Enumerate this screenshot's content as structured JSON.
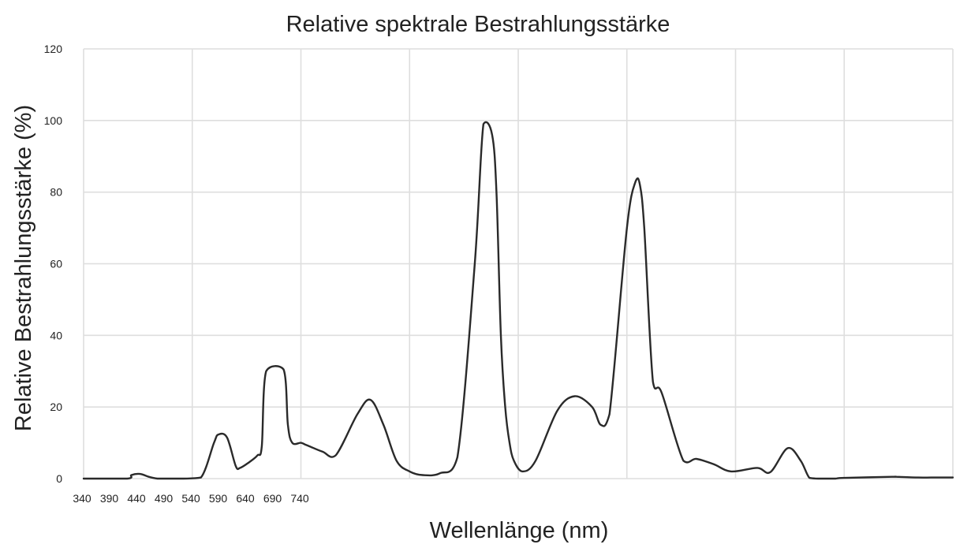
{
  "chart_data": {
    "type": "line",
    "title": "Relative spektrale Bestrahlungsstärke",
    "xlabel": "Wellenlänge (nm)",
    "ylabel": "Relative Bestrahlungsstärke (%)",
    "ylim": [
      0,
      120
    ],
    "y_ticks": [
      "0",
      "20",
      "40",
      "60",
      "80",
      "100",
      "120"
    ],
    "x_tick_labels": [
      "340",
      "390",
      "440",
      "490",
      "540",
      "590",
      "640",
      "690",
      "740"
    ],
    "grid": true,
    "legend": "none",
    "line_color": "#2a2a2a",
    "series": [
      {
        "x": [
          0,
          0.05,
          0.055,
          0.065,
          0.075,
          0.085,
          0.095,
          0.115,
          0.135,
          0.15,
          0.155,
          0.165,
          0.175,
          0.18,
          0.19,
          0.2,
          0.205,
          0.21,
          0.23,
          0.235,
          0.24,
          0.25,
          0.255,
          0.26,
          0.275,
          0.29,
          0.315,
          0.33,
          0.345,
          0.36,
          0.375,
          0.39,
          0.41,
          0.43,
          0.45,
          0.46,
          0.47,
          0.475,
          0.48,
          0.485,
          0.49,
          0.495,
          0.505,
          0.52,
          0.545,
          0.565,
          0.585,
          0.595,
          0.605,
          0.625,
          0.635,
          0.64,
          0.645,
          0.655,
          0.665,
          0.69,
          0.705,
          0.725,
          0.745,
          0.775,
          0.79,
          0.81,
          0.825,
          0.835,
          0.845,
          0.855,
          0.865,
          0.875,
          0.93,
          0.935,
          0.96,
          0.975,
          0.99,
          1.0
        ],
        "values": [
          0,
          0,
          1,
          1.3,
          0.5,
          0,
          0,
          0,
          0.3,
          10,
          12.3,
          11.5,
          3.5,
          3,
          4.5,
          6.5,
          9,
          30,
          30.5,
          15,
          10,
          10,
          9.5,
          9,
          7.5,
          6.5,
          18,
          22,
          15,
          5,
          2,
          1,
          1.5,
          6,
          60,
          99,
          96,
          80,
          40,
          20,
          10,
          5,
          2,
          5,
          19,
          23,
          20,
          15,
          18,
          70,
          83,
          82,
          70,
          27,
          24,
          5,
          5.5,
          4,
          2,
          3,
          1.8,
          8.5,
          5,
          0.2,
          0,
          0,
          0,
          0.2,
          0.5,
          0.5,
          0.3,
          0.3,
          0.3,
          0.3
        ]
      }
    ]
  }
}
